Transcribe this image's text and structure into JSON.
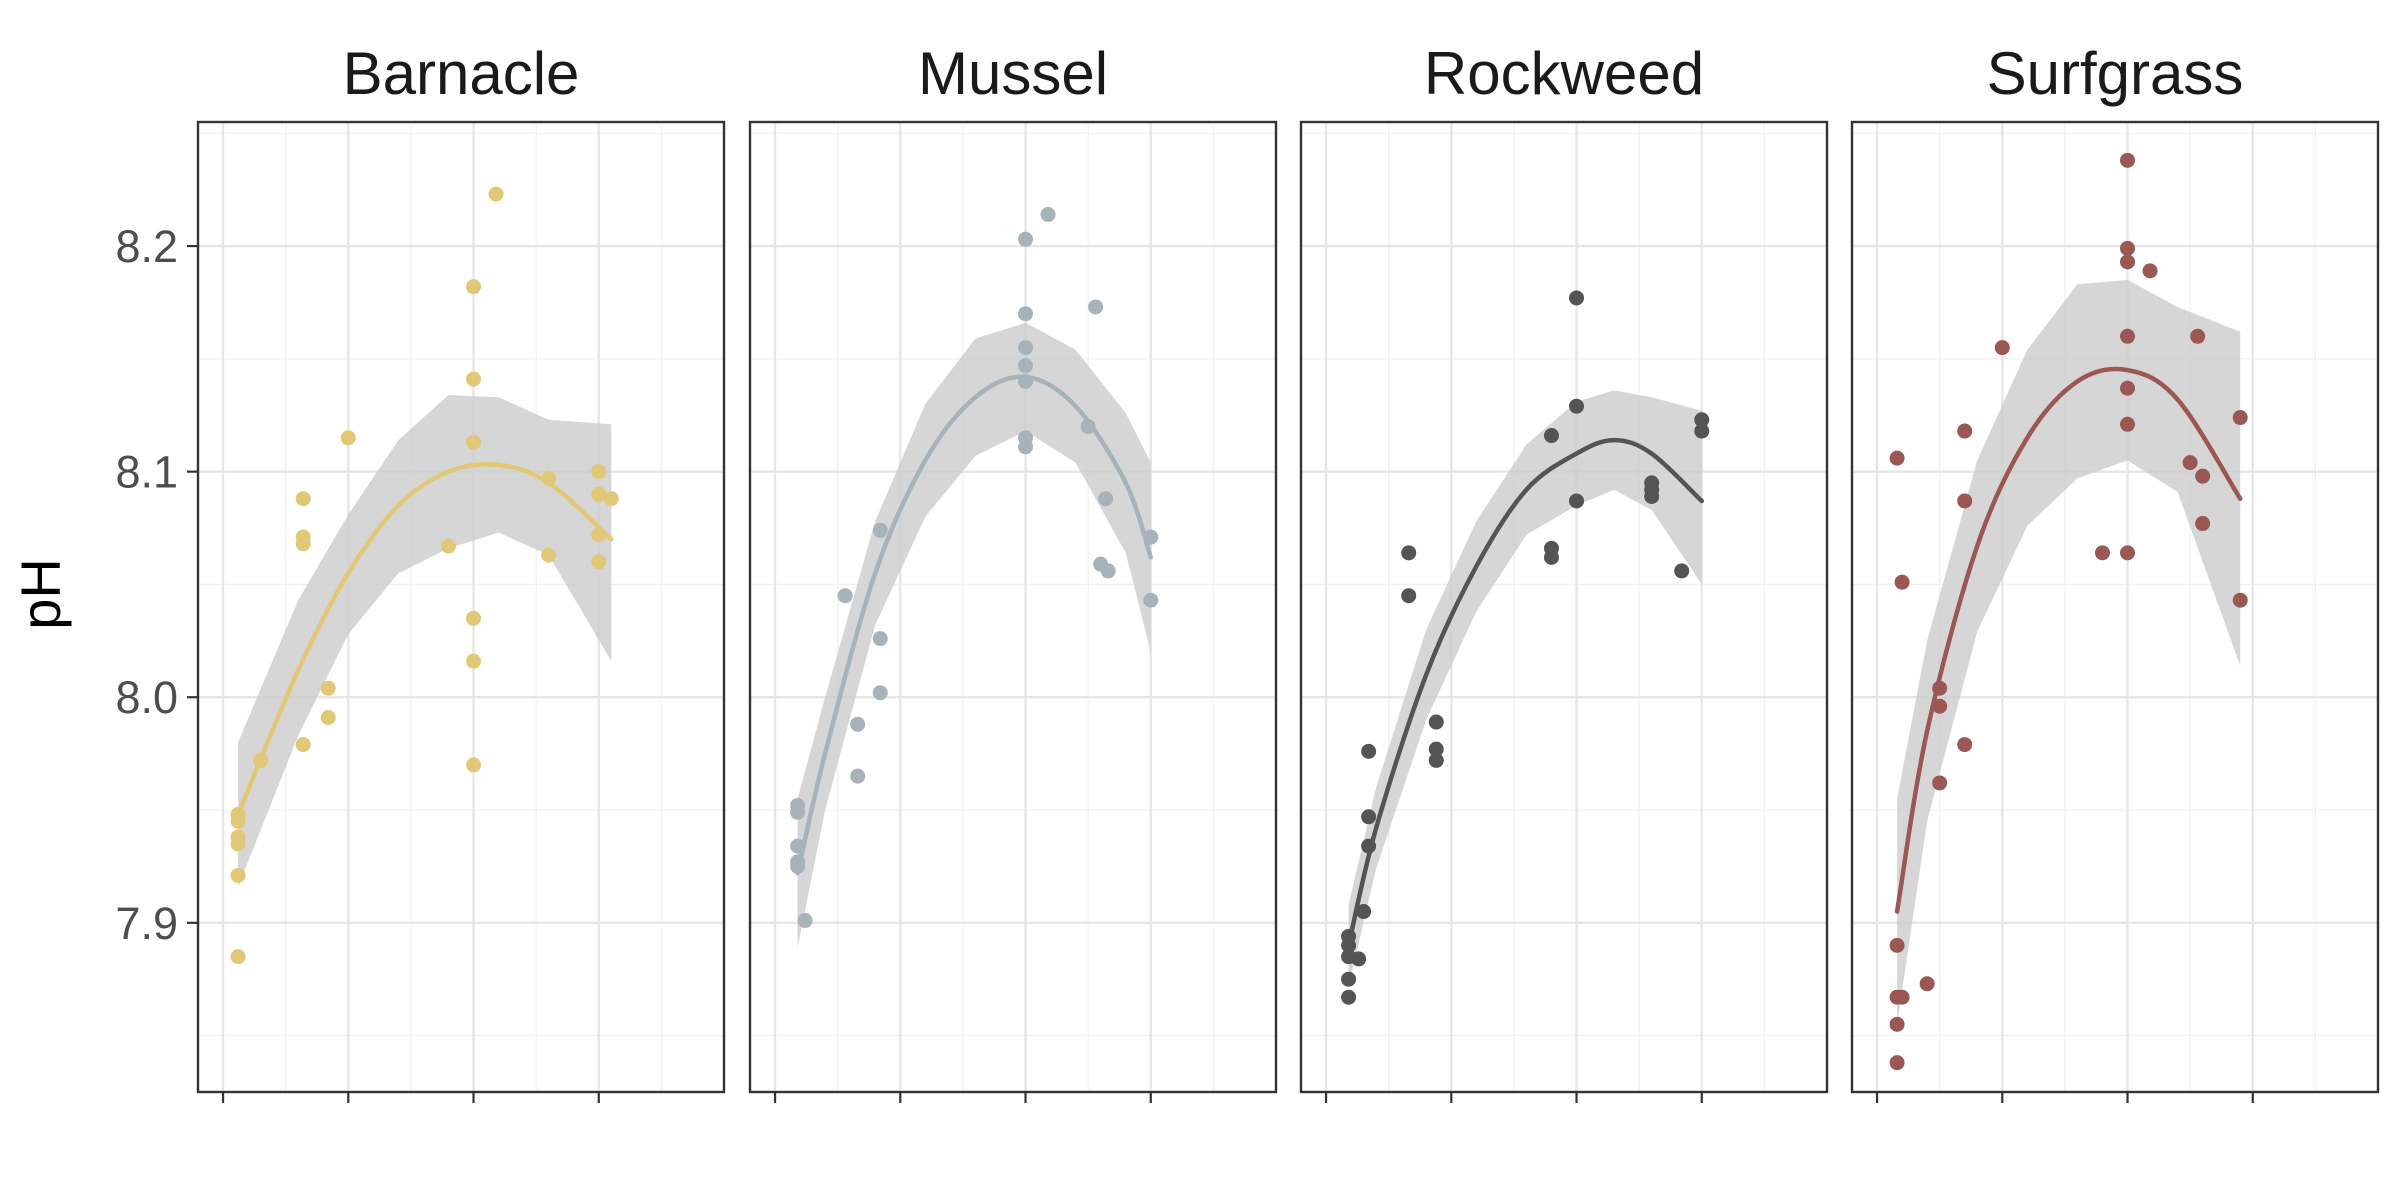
{
  "chart_data": {
    "type": "scatter",
    "ylabel": "pH",
    "xlabel": "",
    "ylim": [
      7.825,
      8.255
    ],
    "y_ticks": [
      "8.2",
      "8.1",
      "8.0",
      "7.9"
    ],
    "x_hidden_ticks": [
      0,
      5,
      10,
      15
    ],
    "xlim": [
      -1,
      20
    ],
    "grid": true,
    "trend": "quadratic fit with confidence band",
    "panels": [
      {
        "name": "Barnacle",
        "color": "#E1C877",
        "points": [
          [
            0.6,
            7.948
          ],
          [
            0.6,
            7.945
          ],
          [
            0.6,
            7.938
          ],
          [
            0.6,
            7.935
          ],
          [
            0.6,
            7.921
          ],
          [
            0.6,
            7.885
          ],
          [
            1.5,
            7.972
          ],
          [
            3.2,
            8.088
          ],
          [
            3.2,
            8.071
          ],
          [
            3.2,
            8.068
          ],
          [
            3.2,
            7.979
          ],
          [
            4.2,
            8.004
          ],
          [
            4.2,
            7.991
          ],
          [
            5.0,
            8.115
          ],
          [
            9.0,
            8.067
          ],
          [
            10.0,
            8.182
          ],
          [
            10.0,
            8.141
          ],
          [
            10.0,
            8.113
          ],
          [
            10.0,
            8.035
          ],
          [
            10.0,
            8.016
          ],
          [
            10.0,
            7.97
          ],
          [
            10.9,
            8.223
          ],
          [
            13.0,
            8.097
          ],
          [
            13.0,
            8.063
          ],
          [
            15.0,
            8.1
          ],
          [
            15.0,
            8.06
          ],
          [
            15.0,
            8.09
          ],
          [
            15.0,
            8.072
          ],
          [
            15.5,
            8.088
          ]
        ],
        "fit": [
          [
            0.6,
            7.948
          ],
          [
            3,
            8.012
          ],
          [
            5,
            8.055
          ],
          [
            7,
            8.085
          ],
          [
            9,
            8.1
          ],
          [
            11,
            8.103
          ],
          [
            13,
            8.095
          ],
          [
            15.5,
            8.07
          ]
        ],
        "band_upper": [
          [
            0.6,
            7.98
          ],
          [
            3,
            8.043
          ],
          [
            5,
            8.081
          ],
          [
            7,
            8.114
          ],
          [
            9,
            8.134
          ],
          [
            11,
            8.133
          ],
          [
            13,
            8.123
          ],
          [
            15.5,
            8.121
          ]
        ],
        "band_lower": [
          [
            0.6,
            7.916
          ],
          [
            3,
            7.983
          ],
          [
            5,
            8.028
          ],
          [
            7,
            8.055
          ],
          [
            9,
            8.066
          ],
          [
            11,
            8.073
          ],
          [
            13,
            8.063
          ],
          [
            15.5,
            8.016
          ]
        ]
      },
      {
        "name": "Mussel",
        "color": "#A7B3B8",
        "points": [
          [
            0.9,
            7.952
          ],
          [
            0.9,
            7.949
          ],
          [
            0.9,
            7.934
          ],
          [
            0.9,
            7.927
          ],
          [
            0.9,
            7.925
          ],
          [
            1.2,
            7.901
          ],
          [
            2.8,
            8.045
          ],
          [
            3.3,
            7.988
          ],
          [
            3.3,
            7.965
          ],
          [
            4.2,
            8.074
          ],
          [
            4.2,
            8.026
          ],
          [
            4.2,
            8.002
          ],
          [
            10.0,
            8.203
          ],
          [
            10.0,
            8.17
          ],
          [
            10.0,
            8.155
          ],
          [
            10.0,
            8.147
          ],
          [
            10.0,
            8.14
          ],
          [
            10.0,
            8.115
          ],
          [
            10.0,
            8.111
          ],
          [
            10.9,
            8.214
          ],
          [
            12.5,
            8.12
          ],
          [
            12.8,
            8.173
          ],
          [
            13.2,
            8.088
          ],
          [
            13.0,
            8.059
          ],
          [
            13.3,
            8.056
          ],
          [
            15.0,
            8.071
          ],
          [
            15.0,
            8.043
          ]
        ],
        "fit": [
          [
            0.9,
            7.922
          ],
          [
            2,
            7.975
          ],
          [
            4,
            8.055
          ],
          [
            6,
            8.105
          ],
          [
            8,
            8.133
          ],
          [
            10,
            8.142
          ],
          [
            12,
            8.129
          ],
          [
            14,
            8.095
          ],
          [
            15,
            8.062
          ]
        ],
        "band_upper": [
          [
            0.9,
            7.955
          ],
          [
            2,
            8.0
          ],
          [
            4,
            8.078
          ],
          [
            6,
            8.13
          ],
          [
            8,
            8.159
          ],
          [
            10,
            8.166
          ],
          [
            12,
            8.154
          ],
          [
            14,
            8.126
          ],
          [
            15,
            8.104
          ]
        ],
        "band_lower": [
          [
            0.9,
            7.889
          ],
          [
            2,
            7.95
          ],
          [
            4,
            8.032
          ],
          [
            6,
            8.08
          ],
          [
            8,
            8.107
          ],
          [
            10,
            8.118
          ],
          [
            12,
            8.104
          ],
          [
            14,
            8.064
          ],
          [
            15,
            8.02
          ]
        ]
      },
      {
        "name": "Rockweed",
        "color": "#545454",
        "points": [
          [
            0.9,
            7.894
          ],
          [
            0.9,
            7.89
          ],
          [
            0.9,
            7.885
          ],
          [
            0.9,
            7.875
          ],
          [
            0.9,
            7.867
          ],
          [
            1.3,
            7.884
          ],
          [
            1.5,
            7.905
          ],
          [
            1.7,
            7.976
          ],
          [
            1.7,
            7.947
          ],
          [
            1.7,
            7.934
          ],
          [
            3.3,
            8.064
          ],
          [
            3.3,
            8.045
          ],
          [
            4.4,
            7.989
          ],
          [
            4.4,
            7.977
          ],
          [
            4.4,
            7.972
          ],
          [
            9.0,
            8.116
          ],
          [
            9.0,
            8.066
          ],
          [
            9.0,
            8.062
          ],
          [
            10.0,
            8.177
          ],
          [
            10.0,
            8.129
          ],
          [
            10.0,
            8.087
          ],
          [
            13.0,
            8.095
          ],
          [
            13.0,
            8.092
          ],
          [
            13.0,
            8.089
          ],
          [
            14.2,
            8.056
          ],
          [
            15.0,
            8.123
          ],
          [
            15.0,
            8.118
          ]
        ],
        "fit": [
          [
            0.9,
            7.89
          ],
          [
            2,
            7.942
          ],
          [
            4,
            8.01
          ],
          [
            6,
            8.058
          ],
          [
            8,
            8.092
          ],
          [
            10,
            8.108
          ],
          [
            11.5,
            8.114
          ],
          [
            13,
            8.108
          ],
          [
            15,
            8.087
          ]
        ],
        "band_upper": [
          [
            0.9,
            7.908
          ],
          [
            2,
            7.96
          ],
          [
            4,
            8.03
          ],
          [
            6,
            8.078
          ],
          [
            8,
            8.112
          ],
          [
            10,
            8.131
          ],
          [
            11.5,
            8.136
          ],
          [
            13,
            8.133
          ],
          [
            15,
            8.127
          ]
        ],
        "band_lower": [
          [
            0.9,
            7.872
          ],
          [
            2,
            7.924
          ],
          [
            4,
            7.99
          ],
          [
            6,
            8.038
          ],
          [
            8,
            8.072
          ],
          [
            10,
            8.085
          ],
          [
            11.5,
            8.092
          ],
          [
            13,
            8.083
          ],
          [
            15,
            8.05
          ]
        ]
      },
      {
        "name": "Surfgrass",
        "color": "#9A5754",
        "points": [
          [
            0.8,
            8.106
          ],
          [
            1.0,
            8.051
          ],
          [
            0.8,
            7.89
          ],
          [
            0.8,
            7.867
          ],
          [
            1.0,
            7.867
          ],
          [
            0.8,
            7.855
          ],
          [
            0.8,
            7.838
          ],
          [
            2.0,
            7.873
          ],
          [
            2.5,
            8.004
          ],
          [
            2.5,
            7.996
          ],
          [
            2.5,
            7.962
          ],
          [
            3.5,
            8.118
          ],
          [
            3.5,
            8.087
          ],
          [
            3.5,
            7.979
          ],
          [
            5.0,
            8.155
          ],
          [
            9.0,
            8.064
          ],
          [
            10.0,
            8.064
          ],
          [
            10.0,
            8.238
          ],
          [
            10.0,
            8.199
          ],
          [
            10.0,
            8.193
          ],
          [
            10.0,
            8.16
          ],
          [
            10.0,
            8.137
          ],
          [
            10.0,
            8.121
          ],
          [
            10.9,
            8.189
          ],
          [
            12.5,
            8.104
          ],
          [
            12.8,
            8.16
          ],
          [
            13.0,
            8.098
          ],
          [
            13.0,
            8.077
          ],
          [
            14.5,
            8.124
          ],
          [
            14.5,
            8.043
          ]
        ],
        "fit": [
          [
            0.8,
            7.905
          ],
          [
            2,
            7.985
          ],
          [
            4,
            8.067
          ],
          [
            6,
            8.115
          ],
          [
            8,
            8.14
          ],
          [
            10,
            8.145
          ],
          [
            12,
            8.132
          ],
          [
            14.5,
            8.088
          ]
        ],
        "band_upper": [
          [
            0.8,
            7.955
          ],
          [
            2,
            8.025
          ],
          [
            4,
            8.105
          ],
          [
            6,
            8.154
          ],
          [
            8,
            8.183
          ],
          [
            10,
            8.185
          ],
          [
            12,
            8.173
          ],
          [
            14.5,
            8.162
          ]
        ],
        "band_lower": [
          [
            0.8,
            7.855
          ],
          [
            2,
            7.945
          ],
          [
            4,
            8.029
          ],
          [
            6,
            8.076
          ],
          [
            8,
            8.097
          ],
          [
            10,
            8.105
          ],
          [
            12,
            8.091
          ],
          [
            14.5,
            8.014
          ]
        ]
      }
    ]
  }
}
